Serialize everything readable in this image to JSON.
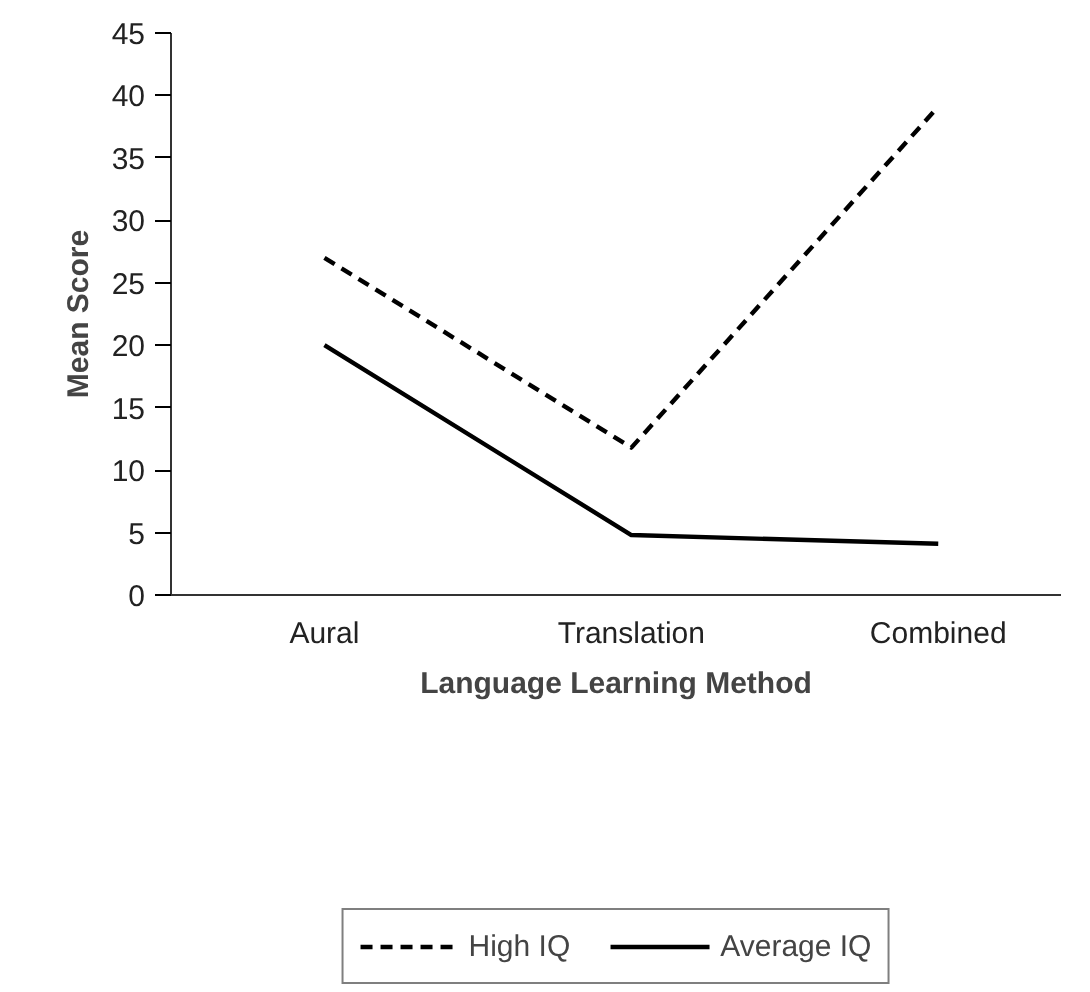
{
  "chart_data": {
    "type": "line",
    "xlabel": "Language Learning Method",
    "ylabel": "Mean Score",
    "categories": [
      "Aural",
      "Translation",
      "Combined"
    ],
    "series": [
      {
        "name": "High IQ",
        "color": "#000000",
        "line_style": "dashed",
        "values": [
          27,
          11.8,
          39.1
        ]
      },
      {
        "name": "Average IQ",
        "color": "#000000",
        "line_style": "solid",
        "values": [
          20,
          4.8,
          4.1
        ]
      }
    ],
    "ylim": [
      0,
      45
    ],
    "yticks": [
      0,
      5,
      10,
      15,
      20,
      25,
      30,
      35,
      40,
      45
    ],
    "grid": false,
    "legend": "bottom",
    "marker": "none"
  }
}
